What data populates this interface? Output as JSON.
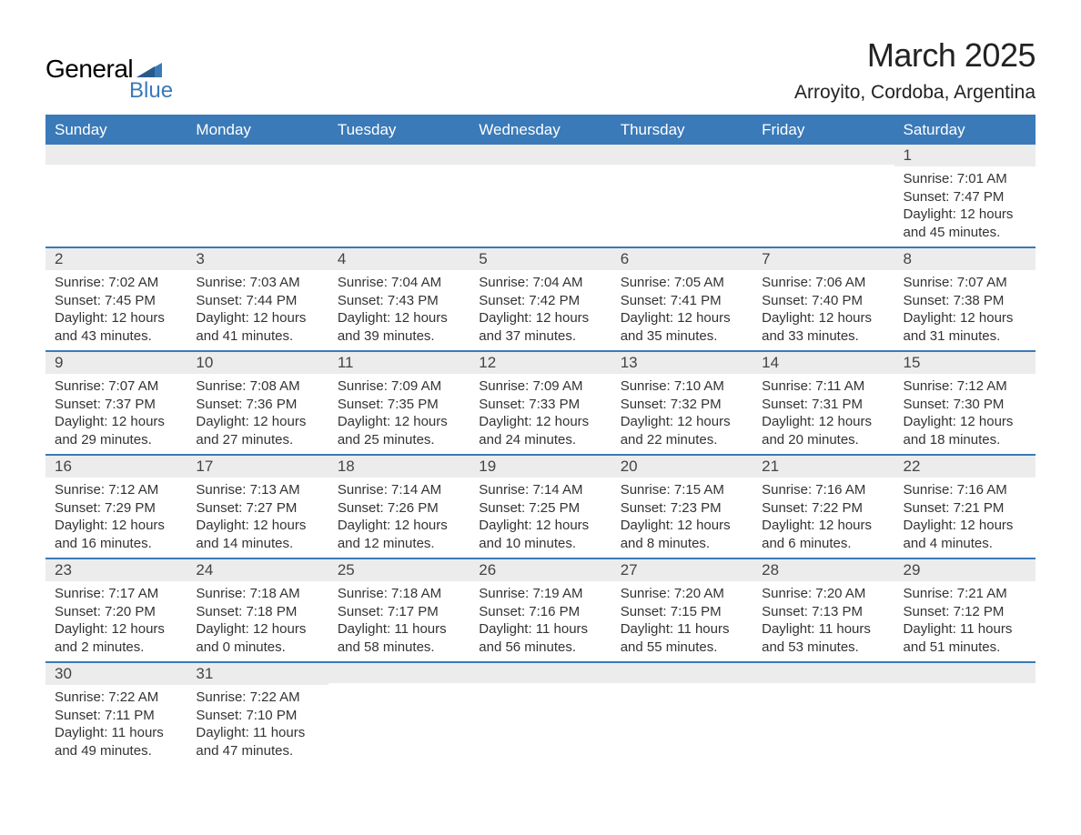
{
  "logo": {
    "text_top": "General",
    "text_bottom": "Blue",
    "icon_color": "#3a7ab8"
  },
  "title": "March 2025",
  "location": "Arroyito, Cordoba, Argentina",
  "colors": {
    "header_bg": "#3a7ab8",
    "header_text": "#ffffff",
    "daynum_bg": "#ececec",
    "row_divider": "#3a7ab8",
    "body_text": "#333333",
    "page_bg": "#ffffff"
  },
  "typography": {
    "title_fontsize": 36,
    "location_fontsize": 21,
    "header_fontsize": 17,
    "daynum_fontsize": 17,
    "content_fontsize": 15
  },
  "day_headers": [
    "Sunday",
    "Monday",
    "Tuesday",
    "Wednesday",
    "Thursday",
    "Friday",
    "Saturday"
  ],
  "weeks": [
    [
      {
        "num": "",
        "sunrise": "",
        "sunset": "",
        "daylight": ""
      },
      {
        "num": "",
        "sunrise": "",
        "sunset": "",
        "daylight": ""
      },
      {
        "num": "",
        "sunrise": "",
        "sunset": "",
        "daylight": ""
      },
      {
        "num": "",
        "sunrise": "",
        "sunset": "",
        "daylight": ""
      },
      {
        "num": "",
        "sunrise": "",
        "sunset": "",
        "daylight": ""
      },
      {
        "num": "",
        "sunrise": "",
        "sunset": "",
        "daylight": ""
      },
      {
        "num": "1",
        "sunrise": "Sunrise: 7:01 AM",
        "sunset": "Sunset: 7:47 PM",
        "daylight": "Daylight: 12 hours and 45 minutes."
      }
    ],
    [
      {
        "num": "2",
        "sunrise": "Sunrise: 7:02 AM",
        "sunset": "Sunset: 7:45 PM",
        "daylight": "Daylight: 12 hours and 43 minutes."
      },
      {
        "num": "3",
        "sunrise": "Sunrise: 7:03 AM",
        "sunset": "Sunset: 7:44 PM",
        "daylight": "Daylight: 12 hours and 41 minutes."
      },
      {
        "num": "4",
        "sunrise": "Sunrise: 7:04 AM",
        "sunset": "Sunset: 7:43 PM",
        "daylight": "Daylight: 12 hours and 39 minutes."
      },
      {
        "num": "5",
        "sunrise": "Sunrise: 7:04 AM",
        "sunset": "Sunset: 7:42 PM",
        "daylight": "Daylight: 12 hours and 37 minutes."
      },
      {
        "num": "6",
        "sunrise": "Sunrise: 7:05 AM",
        "sunset": "Sunset: 7:41 PM",
        "daylight": "Daylight: 12 hours and 35 minutes."
      },
      {
        "num": "7",
        "sunrise": "Sunrise: 7:06 AM",
        "sunset": "Sunset: 7:40 PM",
        "daylight": "Daylight: 12 hours and 33 minutes."
      },
      {
        "num": "8",
        "sunrise": "Sunrise: 7:07 AM",
        "sunset": "Sunset: 7:38 PM",
        "daylight": "Daylight: 12 hours and 31 minutes."
      }
    ],
    [
      {
        "num": "9",
        "sunrise": "Sunrise: 7:07 AM",
        "sunset": "Sunset: 7:37 PM",
        "daylight": "Daylight: 12 hours and 29 minutes."
      },
      {
        "num": "10",
        "sunrise": "Sunrise: 7:08 AM",
        "sunset": "Sunset: 7:36 PM",
        "daylight": "Daylight: 12 hours and 27 minutes."
      },
      {
        "num": "11",
        "sunrise": "Sunrise: 7:09 AM",
        "sunset": "Sunset: 7:35 PM",
        "daylight": "Daylight: 12 hours and 25 minutes."
      },
      {
        "num": "12",
        "sunrise": "Sunrise: 7:09 AM",
        "sunset": "Sunset: 7:33 PM",
        "daylight": "Daylight: 12 hours and 24 minutes."
      },
      {
        "num": "13",
        "sunrise": "Sunrise: 7:10 AM",
        "sunset": "Sunset: 7:32 PM",
        "daylight": "Daylight: 12 hours and 22 minutes."
      },
      {
        "num": "14",
        "sunrise": "Sunrise: 7:11 AM",
        "sunset": "Sunset: 7:31 PM",
        "daylight": "Daylight: 12 hours and 20 minutes."
      },
      {
        "num": "15",
        "sunrise": "Sunrise: 7:12 AM",
        "sunset": "Sunset: 7:30 PM",
        "daylight": "Daylight: 12 hours and 18 minutes."
      }
    ],
    [
      {
        "num": "16",
        "sunrise": "Sunrise: 7:12 AM",
        "sunset": "Sunset: 7:29 PM",
        "daylight": "Daylight: 12 hours and 16 minutes."
      },
      {
        "num": "17",
        "sunrise": "Sunrise: 7:13 AM",
        "sunset": "Sunset: 7:27 PM",
        "daylight": "Daylight: 12 hours and 14 minutes."
      },
      {
        "num": "18",
        "sunrise": "Sunrise: 7:14 AM",
        "sunset": "Sunset: 7:26 PM",
        "daylight": "Daylight: 12 hours and 12 minutes."
      },
      {
        "num": "19",
        "sunrise": "Sunrise: 7:14 AM",
        "sunset": "Sunset: 7:25 PM",
        "daylight": "Daylight: 12 hours and 10 minutes."
      },
      {
        "num": "20",
        "sunrise": "Sunrise: 7:15 AM",
        "sunset": "Sunset: 7:23 PM",
        "daylight": "Daylight: 12 hours and 8 minutes."
      },
      {
        "num": "21",
        "sunrise": "Sunrise: 7:16 AM",
        "sunset": "Sunset: 7:22 PM",
        "daylight": "Daylight: 12 hours and 6 minutes."
      },
      {
        "num": "22",
        "sunrise": "Sunrise: 7:16 AM",
        "sunset": "Sunset: 7:21 PM",
        "daylight": "Daylight: 12 hours and 4 minutes."
      }
    ],
    [
      {
        "num": "23",
        "sunrise": "Sunrise: 7:17 AM",
        "sunset": "Sunset: 7:20 PM",
        "daylight": "Daylight: 12 hours and 2 minutes."
      },
      {
        "num": "24",
        "sunrise": "Sunrise: 7:18 AM",
        "sunset": "Sunset: 7:18 PM",
        "daylight": "Daylight: 12 hours and 0 minutes."
      },
      {
        "num": "25",
        "sunrise": "Sunrise: 7:18 AM",
        "sunset": "Sunset: 7:17 PM",
        "daylight": "Daylight: 11 hours and 58 minutes."
      },
      {
        "num": "26",
        "sunrise": "Sunrise: 7:19 AM",
        "sunset": "Sunset: 7:16 PM",
        "daylight": "Daylight: 11 hours and 56 minutes."
      },
      {
        "num": "27",
        "sunrise": "Sunrise: 7:20 AM",
        "sunset": "Sunset: 7:15 PM",
        "daylight": "Daylight: 11 hours and 55 minutes."
      },
      {
        "num": "28",
        "sunrise": "Sunrise: 7:20 AM",
        "sunset": "Sunset: 7:13 PM",
        "daylight": "Daylight: 11 hours and 53 minutes."
      },
      {
        "num": "29",
        "sunrise": "Sunrise: 7:21 AM",
        "sunset": "Sunset: 7:12 PM",
        "daylight": "Daylight: 11 hours and 51 minutes."
      }
    ],
    [
      {
        "num": "30",
        "sunrise": "Sunrise: 7:22 AM",
        "sunset": "Sunset: 7:11 PM",
        "daylight": "Daylight: 11 hours and 49 minutes."
      },
      {
        "num": "31",
        "sunrise": "Sunrise: 7:22 AM",
        "sunset": "Sunset: 7:10 PM",
        "daylight": "Daylight: 11 hours and 47 minutes."
      },
      {
        "num": "",
        "sunrise": "",
        "sunset": "",
        "daylight": ""
      },
      {
        "num": "",
        "sunrise": "",
        "sunset": "",
        "daylight": ""
      },
      {
        "num": "",
        "sunrise": "",
        "sunset": "",
        "daylight": ""
      },
      {
        "num": "",
        "sunrise": "",
        "sunset": "",
        "daylight": ""
      },
      {
        "num": "",
        "sunrise": "",
        "sunset": "",
        "daylight": ""
      }
    ]
  ]
}
